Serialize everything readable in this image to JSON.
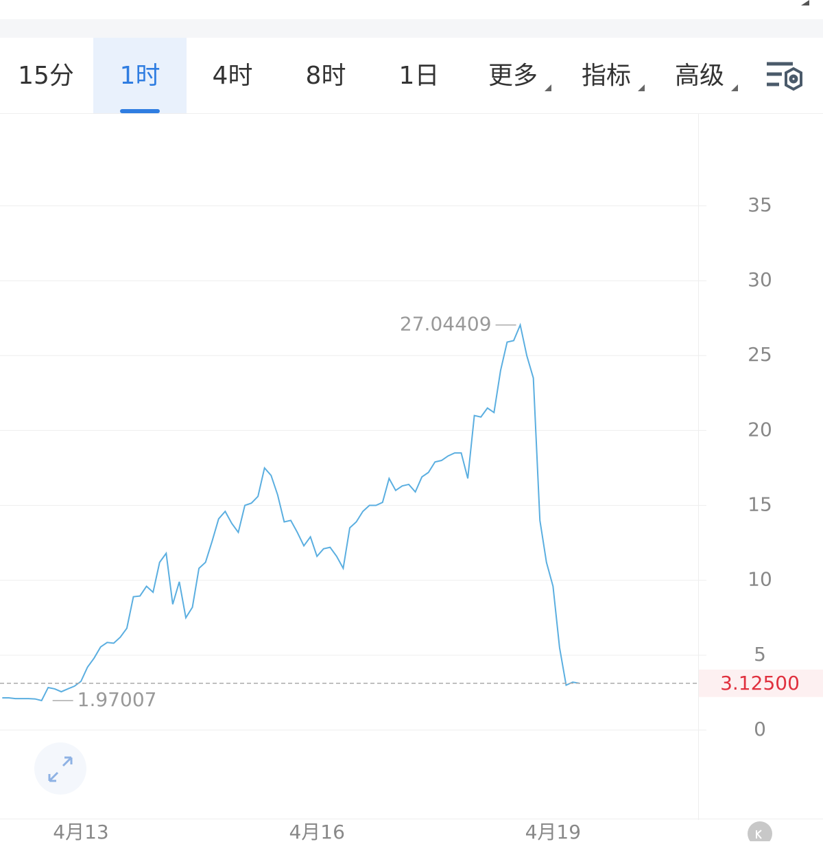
{
  "tabs": [
    "15分",
    "1时",
    "4时",
    "8时",
    "1日",
    "更多",
    "指标",
    "高级"
  ],
  "chart_data": {
    "type": "line",
    "categories": [
      null,
      null,
      null,
      null,
      null,
      null,
      null,
      null,
      null,
      null,
      null,
      null,
      "4月13",
      null,
      null,
      null,
      null,
      null,
      null,
      null,
      null,
      null,
      null,
      null,
      null,
      null,
      null,
      null,
      null,
      null,
      null,
      null,
      null,
      null,
      null,
      null,
      null,
      null,
      null,
      null,
      null,
      null,
      null,
      null,
      null,
      null,
      null,
      null,
      "4月16",
      null,
      null,
      null,
      null,
      null,
      null,
      null,
      null,
      null,
      null,
      null,
      null,
      null,
      null,
      null,
      null,
      null,
      null,
      null,
      null,
      null,
      null,
      null,
      null,
      null,
      null,
      null,
      null,
      null,
      null,
      null,
      null,
      null,
      null,
      null,
      "4月19",
      null,
      null,
      null,
      null
    ],
    "values": [
      2.15,
      2.15,
      2.1,
      2.1,
      2.1,
      2.08,
      1.97007,
      2.84,
      2.75,
      2.56,
      2.75,
      2.93,
      3.25,
      4.2,
      4.8,
      5.55,
      5.85,
      5.8,
      6.2,
      6.8,
      8.9,
      8.95,
      9.6,
      9.2,
      11.2,
      11.8,
      8.4,
      9.9,
      7.5,
      8.2,
      10.8,
      11.2,
      12.6,
      14.1,
      14.6,
      13.8,
      13.2,
      15.0,
      15.15,
      15.6,
      17.5,
      17.0,
      15.7,
      13.9,
      14.0,
      13.2,
      12.3,
      12.9,
      11.6,
      12.1,
      12.2,
      11.6,
      10.8,
      13.5,
      13.9,
      14.6,
      15.0,
      15.0,
      15.2,
      16.8,
      16.0,
      16.3,
      16.4,
      15.9,
      16.9,
      17.2,
      17.9,
      18.0,
      18.3,
      18.5,
      18.5,
      16.8,
      21.0,
      20.9,
      21.5,
      21.2,
      24.0,
      25.9,
      26.0,
      27.04409,
      25.0,
      23.5,
      14.0,
      11.2,
      9.6,
      5.5,
      3.0,
      3.2,
      3.125
    ],
    "color": "#5aaee0",
    "ylim": [
      -5.91,
      41.18
    ],
    "yticks": [
      0,
      5,
      10,
      15,
      20,
      25,
      30,
      35
    ],
    "grid": true,
    "high": 27.04409,
    "low": 1.97007,
    "last": {
      "value": 3.125,
      "label": "3.12500"
    }
  }
}
